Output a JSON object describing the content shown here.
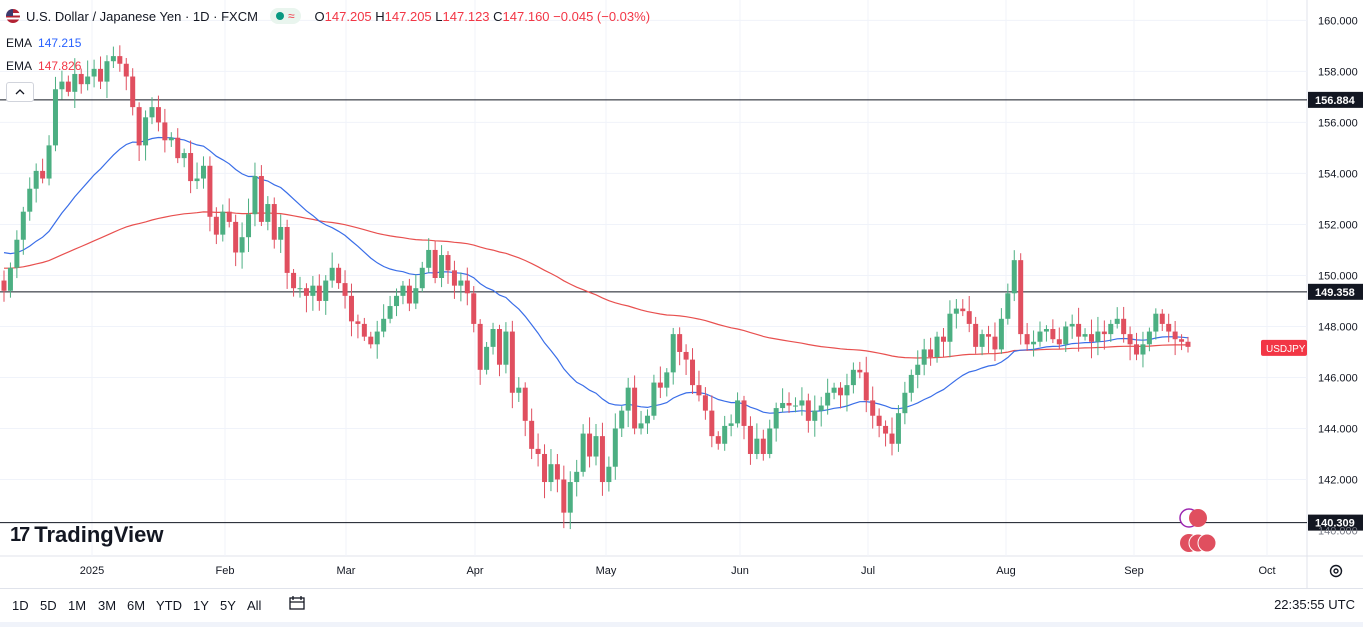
{
  "header": {
    "symbol_title": "U.S. Dollar / Japanese Yen · 1D · FXCM",
    "ohlc": {
      "o_label": "O",
      "o": "147.205",
      "h_label": "H",
      "h": "147.205",
      "l_label": "L",
      "l": "147.123",
      "c_label": "C",
      "c": "147.160",
      "change": "−0.045 (−0.03%)"
    },
    "market_status_icon": "green-dot-icon",
    "realtime_icon": "wave-icon"
  },
  "indicators": [
    {
      "name": "EMA",
      "value": "147.215",
      "color": "#2962ff"
    },
    {
      "name": "EMA",
      "value": "147.826",
      "color": "#f23645"
    }
  ],
  "logo": {
    "text": "TradingView"
  },
  "toolbar": {
    "timeframes": [
      "1D",
      "5D",
      "1M",
      "3M",
      "6M",
      "YTD",
      "1Y",
      "5Y",
      "All"
    ],
    "clock": "22:35:55 UTC"
  },
  "colors": {
    "up": "#4caf82",
    "down": "#e04f5f",
    "ema_fast": "#3a6ee8",
    "ema_slow": "#e8504f",
    "label_red": "#f23645",
    "label_black": "#131722"
  },
  "chart_data": {
    "type": "candlestick",
    "symbol": "USDJPY",
    "ylim": [
      139.0,
      160.8
    ],
    "y_ticks": [
      "142.000",
      "144.000",
      "146.000",
      "148.000",
      "150.000",
      "152.000",
      "154.000",
      "156.000",
      "158.000",
      "160.000"
    ],
    "x_labels": [
      "2025",
      "Feb",
      "Mar",
      "Apr",
      "May",
      "Jun",
      "Jul",
      "Aug",
      "Sep",
      "Oct"
    ],
    "horizontal_lines": [
      {
        "label": "156.884",
        "value": 156.884
      },
      {
        "label": "149.358",
        "value": 149.358
      },
      {
        "label": "140.309",
        "value": 140.309
      }
    ],
    "last_price_label": "USDJPY",
    "last_price": 147.16,
    "hidden_tick_label": "140.000",
    "candles_close": [
      149.4,
      150.3,
      151.4,
      152.5,
      153.4,
      154.1,
      153.8,
      155.1,
      157.3,
      157.6,
      157.2,
      157.9,
      157.5,
      157.8,
      158.1,
      157.6,
      158.4,
      158.6,
      158.3,
      157.8,
      156.6,
      155.1,
      156.2,
      156.6,
      156.0,
      155.3,
      155.4,
      154.6,
      154.8,
      153.7,
      153.8,
      154.3,
      152.3,
      151.6,
      152.5,
      152.1,
      150.9,
      151.5,
      152.4,
      153.9,
      152.1,
      152.8,
      151.4,
      151.9,
      150.1,
      149.5,
      149.5,
      149.2,
      149.6,
      149.0,
      149.8,
      150.3,
      149.7,
      149.2,
      148.2,
      148.1,
      147.6,
      147.3,
      147.8,
      148.3,
      148.8,
      149.2,
      149.6,
      148.9,
      149.5,
      150.3,
      151.0,
      149.9,
      150.8,
      150.2,
      149.6,
      149.8,
      149.3,
      148.1,
      146.3,
      147.2,
      147.9,
      146.5,
      147.8,
      145.4,
      145.6,
      144.3,
      143.2,
      143.0,
      141.9,
      142.6,
      142.0,
      140.7,
      141.9,
      142.3,
      143.8,
      142.9,
      143.7,
      141.9,
      142.5,
      144.0,
      144.7,
      145.6,
      144.0,
      144.2,
      144.5,
      145.8,
      145.6,
      146.2,
      147.7,
      147.0,
      146.7,
      145.7,
      145.3,
      144.7,
      143.7,
      143.4,
      144.1,
      144.2,
      145.1,
      144.1,
      143.0,
      143.6,
      143.0,
      144.0,
      144.8,
      145.0,
      144.9,
      144.9,
      145.1,
      144.3,
      144.7,
      144.9,
      145.4,
      145.6,
      145.3,
      145.7,
      146.3,
      146.2,
      145.1,
      144.5,
      144.1,
      143.8,
      143.4,
      144.6,
      145.4,
      146.1,
      146.5,
      147.1,
      146.8,
      147.6,
      147.4,
      148.5,
      148.7,
      148.6,
      148.1,
      147.2,
      147.7,
      147.6,
      147.1,
      148.3,
      149.3,
      150.6,
      147.7,
      147.3,
      147.4,
      147.8,
      147.9,
      147.5,
      147.3,
      148.0,
      148.1,
      147.6,
      147.7,
      147.4,
      147.8,
      147.7,
      148.1,
      148.3,
      147.7,
      147.3,
      146.9,
      147.3,
      147.8,
      148.5,
      148.1,
      147.8,
      147.5,
      147.4,
      147.2
    ],
    "ema_fast": "50-period EMA, last 147.215",
    "ema_slow": "200-period EMA, last 147.826"
  }
}
